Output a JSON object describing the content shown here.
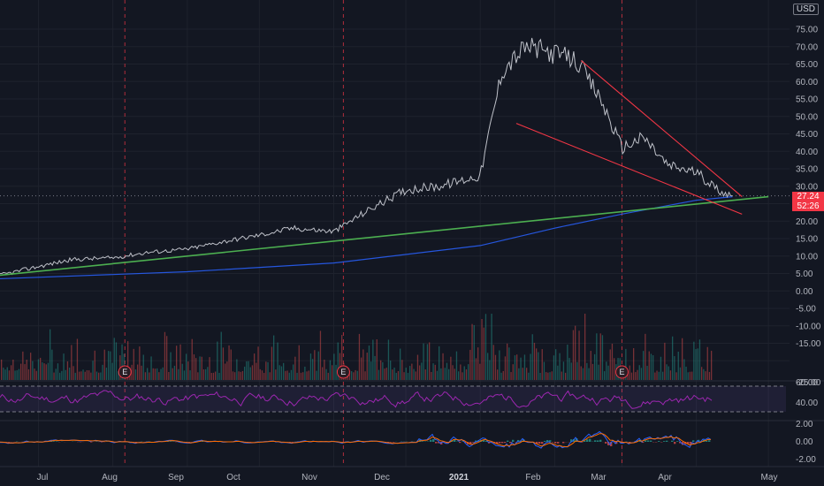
{
  "chart_data": {
    "type": "line",
    "title": "",
    "currency": "USD",
    "last_price": "27.24",
    "countdown": "52:26",
    "x_axis_labels": [
      "Jul",
      "Aug",
      "Sep",
      "Oct",
      "Nov",
      "Dec",
      "2021",
      "Feb",
      "Mar",
      "Apr",
      "May"
    ],
    "y_axis_labels": [
      "75.00",
      "70.00",
      "65.00",
      "60.00",
      "55.00",
      "50.00",
      "45.00",
      "40.00",
      "35.00",
      "30.00",
      "25.00",
      "20.00",
      "15.00",
      "10.00",
      "5.00",
      "0.00",
      "-5.00",
      "-10.00",
      "-15.00",
      "-20.00"
    ],
    "ylim": [
      -25,
      78
    ],
    "price_series": {
      "name": "",
      "x": [
        "2020-06-15",
        "2020-07-01",
        "2020-07-15",
        "2020-08-01",
        "2020-08-15",
        "2020-09-01",
        "2020-09-15",
        "2020-10-01",
        "2020-10-15",
        "2020-11-01",
        "2020-11-15",
        "2020-12-01",
        "2020-12-15",
        "2021-01-01",
        "2021-01-10",
        "2021-01-20",
        "2021-02-01",
        "2021-02-10",
        "2021-02-20",
        "2021-03-01",
        "2021-03-10",
        "2021-03-20",
        "2021-04-01",
        "2021-04-10",
        "2021-04-16"
      ],
      "values": [
        4.5,
        7,
        9,
        9.5,
        11,
        12,
        14,
        16,
        18,
        17,
        23,
        29,
        30,
        33,
        63,
        70,
        68,
        66,
        55,
        41,
        44,
        36,
        34,
        29,
        27.24
      ]
    },
    "moving_average": {
      "x": [
        "2020-06-15",
        "2020-09-01",
        "2020-11-01",
        "2021-01-01",
        "2021-02-01",
        "2021-03-01",
        "2021-04-01",
        "2021-04-16"
      ],
      "values": [
        3.5,
        5.5,
        8,
        13,
        18,
        22,
        26,
        27
      ]
    },
    "trendlines": [
      {
        "color": "#4caf50",
        "x": [
          "2020-06-15",
          "2021-05-01"
        ],
        "values": [
          4.5,
          27
        ]
      },
      {
        "color": "#f23645",
        "x": [
          "2021-02-12",
          "2021-04-20"
        ],
        "values": [
          66,
          27
        ]
      },
      {
        "color": "#f23645",
        "x": [
          "2021-01-16",
          "2021-04-20"
        ],
        "values": [
          48,
          22
        ]
      }
    ],
    "earnings_markers": [
      {
        "label": "E",
        "date": "2020-08-06"
      },
      {
        "label": "E",
        "date": "2020-11-05"
      },
      {
        "label": "E",
        "date": "2021-03-01"
      }
    ],
    "rsi": {
      "axis_labels": [
        "60.00",
        "40.00"
      ],
      "upper": 60,
      "lower": 40
    },
    "macd": {
      "axis_labels": [
        "2.00",
        "0.00",
        "-2.00"
      ]
    }
  },
  "colors": {
    "background": "#131722",
    "price_line": "#d1d4dc",
    "ma_line": "#2962ff",
    "trend_green": "#4caf50",
    "trend_red": "#f23645",
    "rsi_line": "#9c27b0",
    "volume_up": "#26a69a",
    "volume_down": "#ef5350"
  }
}
